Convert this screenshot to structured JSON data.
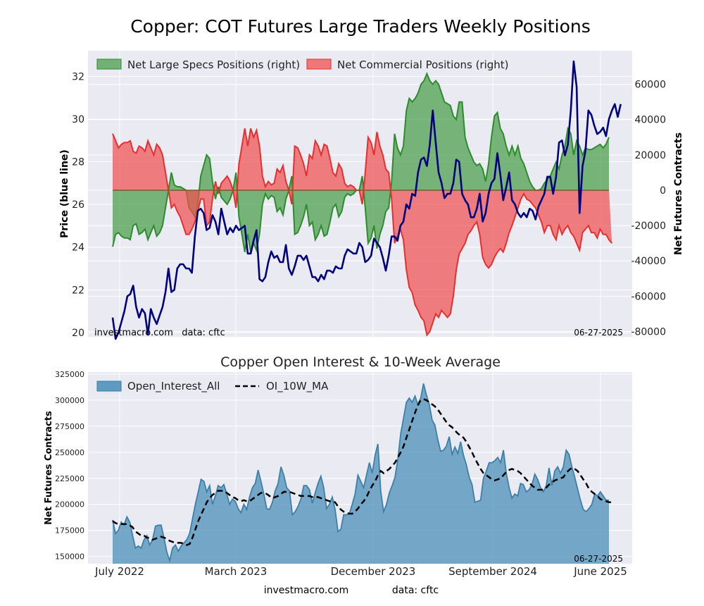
{
  "page": {
    "title": "Copper: COT Futures Large Traders Weekly Positions",
    "footer_left": "investmacro.com",
    "footer_right": "data: cftc"
  },
  "colors": {
    "price_line": "#00007f",
    "specs_fill": "#4a9e4a",
    "specs_line": "#2e8b2e",
    "comm_fill": "#f05050",
    "comm_line": "#e53030",
    "oi_fill": "#5f9bbf",
    "oi_line": "#3d7fa6",
    "ma_line": "#000000",
    "panel_bg": "#eaeaf2"
  },
  "chart_data": [
    {
      "type": "area",
      "title": "",
      "ylabel_left": "Price (blue line)",
      "ylabel_right": "Net Futures Contracts",
      "ylim_left": [
        19.8,
        33.2
      ],
      "ylim_right": [
        -83000,
        79000
      ],
      "yticks_left": [
        "20",
        "22",
        "24",
        "26",
        "28",
        "30",
        "32"
      ],
      "yticks_right": [
        "-80000",
        "-60000",
        "-40000",
        "-20000",
        "0",
        "20000",
        "40000",
        "60000"
      ],
      "grid": true,
      "legend_position": "top-left",
      "watermark": "investmacro.com   data: cftc",
      "date_label": "06-27-2025",
      "x_start": "2022-06-28",
      "x_end": "2025-06-24",
      "series": [
        {
          "name": "Net Large Specs Positions (right)",
          "values": [
            -32000,
            -25000,
            -24000,
            -26000,
            -27000,
            -27000,
            -28000,
            -20000,
            -19000,
            -25000,
            -24000,
            -22000,
            -28000,
            -24000,
            -20000,
            -26000,
            -24000,
            -20000,
            -10000,
            0,
            10000,
            3000,
            2000,
            2000,
            1000,
            0,
            -10000,
            -12000,
            -15000,
            -8000,
            8000,
            14000,
            20000,
            18000,
            5000,
            -5000,
            2000,
            -4000,
            -6000,
            -8000,
            -5000,
            0,
            10000,
            -15000,
            -25000,
            -35000,
            -25000,
            -35000,
            -30000,
            -34000,
            -25000,
            -8000,
            -2000,
            -5000,
            -3000,
            -4000,
            -12000,
            -10000,
            -14000,
            -5000,
            0,
            8000,
            -25000,
            -24000,
            -20000,
            -15000,
            -8000,
            -20000,
            -18000,
            -28000,
            -25000,
            -20000,
            -26000,
            -25000,
            -18000,
            -10000,
            -8000,
            -15000,
            -12000,
            -4000,
            -2000,
            -3000,
            -2000,
            0,
            0,
            8000,
            -10000,
            -30000,
            -27000,
            -20000,
            -33000,
            -25000,
            -20000,
            -12000,
            -10000,
            5000,
            32000,
            24000,
            20000,
            25000,
            45000,
            52000,
            50000,
            52000,
            55000,
            60000,
            62000,
            66000,
            62000,
            60000,
            62000,
            60000,
            55000,
            50000,
            49000,
            48000,
            42000,
            40000,
            50000,
            50000,
            30000,
            24000,
            20000,
            16000,
            14000,
            15000,
            12000,
            5000,
            15000,
            30000,
            42000,
            44000,
            35000,
            32000,
            25000,
            20000,
            25000,
            20000,
            25000,
            18000,
            15000,
            10000,
            5000,
            2000,
            0,
            0,
            1000,
            4000,
            6000,
            8000,
            12000,
            16000,
            12000,
            20000,
            25000,
            35000,
            32000,
            20000,
            28000,
            25000,
            20000,
            24000,
            23000,
            23000,
            24000,
            25000,
            26000,
            24000,
            26000,
            30000
          ]
        },
        {
          "name": "Net Commercial Positions (right)",
          "values": [
            32000,
            28000,
            24000,
            26000,
            27000,
            27000,
            28000,
            22000,
            21000,
            25000,
            24000,
            22000,
            28000,
            24000,
            20000,
            26000,
            24000,
            20000,
            10000,
            0,
            -10000,
            -8000,
            -12000,
            -15000,
            -20000,
            -25000,
            -25000,
            -22000,
            -18000,
            -12000,
            -5000,
            -5000,
            -20000,
            -18000,
            -5000,
            5000,
            -2000,
            4000,
            6000,
            8000,
            5000,
            0,
            -10000,
            15000,
            25000,
            35000,
            25000,
            35000,
            30000,
            34000,
            25000,
            8000,
            2000,
            5000,
            3000,
            4000,
            12000,
            10000,
            14000,
            5000,
            0,
            -8000,
            25000,
            24000,
            20000,
            15000,
            8000,
            20000,
            18000,
            28000,
            25000,
            20000,
            26000,
            25000,
            18000,
            10000,
            8000,
            15000,
            12000,
            4000,
            2000,
            3000,
            2000,
            0,
            0,
            -8000,
            10000,
            30000,
            27000,
            20000,
            33000,
            25000,
            20000,
            12000,
            10000,
            -5000,
            -30000,
            -26000,
            -22000,
            -28000,
            -45000,
            -55000,
            -58000,
            -65000,
            -68000,
            -72000,
            -74000,
            -82000,
            -80000,
            -75000,
            -70000,
            -72000,
            -68000,
            -70000,
            -72000,
            -70000,
            -60000,
            -45000,
            -36000,
            -33000,
            -30000,
            -25000,
            -23000,
            -20000,
            -18000,
            -25000,
            -38000,
            -42000,
            -44000,
            -42000,
            -38000,
            -35000,
            -33000,
            -35000,
            -30000,
            -24000,
            -20000,
            -15000,
            -10000,
            -5000,
            -2000,
            -5000,
            -6000,
            -8000,
            -10000,
            -14000,
            -18000,
            -24000,
            -20000,
            -20000,
            -25000,
            -28000,
            -20000,
            -25000,
            -22000,
            -20000,
            -24000,
            -26000,
            -30000,
            -34000,
            -24000,
            -22000,
            -20000,
            -24000,
            -24000,
            -27000,
            -22000,
            -25000,
            -25000,
            -28000,
            -30000
          ]
        },
        {
          "name": "Price",
          "values": [
            20.7,
            19.7,
            20.0,
            20.5,
            21.0,
            21.7,
            21.8,
            22.2,
            21.2,
            20.7,
            21.1,
            20.9,
            19.9,
            21.1,
            20.7,
            20.4,
            20.8,
            21.2,
            21.9,
            23.0,
            21.9,
            22.0,
            23.0,
            23.2,
            23.2,
            23.0,
            23.0,
            22.8,
            24.5,
            25.7,
            25.8,
            25.6,
            24.8,
            24.9,
            25.5,
            25.2,
            24.6,
            25.8,
            25.2,
            24.6,
            24.9,
            24.7,
            25.0,
            24.8,
            24.9,
            25.0,
            23.7,
            23.7,
            24.3,
            24.8,
            22.5,
            22.4,
            22.6,
            23.3,
            23.8,
            23.5,
            23.6,
            23.3,
            23.3,
            24.1,
            23.0,
            22.7,
            23.1,
            23.6,
            23.6,
            23.4,
            23.6,
            23.1,
            22.6,
            22.6,
            22.4,
            22.7,
            22.5,
            22.9,
            22.9,
            22.8,
            23.1,
            23.0,
            23.0,
            23.6,
            23.9,
            23.8,
            23.7,
            23.7,
            24.2,
            24.0,
            23.3,
            23.4,
            23.6,
            24.4,
            24.2,
            24.0,
            23.5,
            22.9,
            23.6,
            24.5,
            24.5,
            24.3,
            25.0,
            25.2,
            26.0,
            25.8,
            26.5,
            26.4,
            27.5,
            28.1,
            28.2,
            27.8,
            28.8,
            30.4,
            28.9,
            27.5,
            27.0,
            26.3,
            26.5,
            26.5,
            27.0,
            28.1,
            28.0,
            26.5,
            26.2,
            26.0,
            25.4,
            25.4,
            25.8,
            26.5,
            25.2,
            25.6,
            26.5,
            27.0,
            27.2,
            28.4,
            27.4,
            26.2,
            26.8,
            27.5,
            26.2,
            26.0,
            25.6,
            25.4,
            25.6,
            25.4,
            25.8,
            25.7,
            25.3,
            25.9,
            26.2,
            26.5,
            27.3,
            27.3,
            26.5,
            27.3,
            28.9,
            29.0,
            28.3,
            28.8,
            30.4,
            32.7,
            31.5,
            25.6,
            27.8,
            28.5,
            30.4,
            30.2,
            29.7,
            29.3,
            29.4,
            29.6,
            29.2,
            30.0,
            30.4,
            30.7,
            30.1,
            30.7
          ]
        }
      ]
    },
    {
      "type": "area",
      "title": "Copper Open Interest & 10-Week Average",
      "xlabel": "",
      "ylabel": "Net Futures Contracts",
      "ylim": [
        143000,
        327000
      ],
      "yticks": [
        "150000",
        "175000",
        "200000",
        "225000",
        "250000",
        "275000",
        "300000",
        "325000"
      ],
      "xticks": [
        "July 2022",
        "March 2023",
        "December 2023",
        "September 2024",
        "June 2025"
      ],
      "grid": true,
      "legend_position": "top-left",
      "date_label": "06-27-2025",
      "series": [
        {
          "name": "Open_Interest_All",
          "values": [
            185000,
            172000,
            175000,
            183000,
            180000,
            188000,
            183000,
            170000,
            158000,
            160000,
            158000,
            166000,
            170000,
            161000,
            166000,
            179000,
            180000,
            180000,
            168000,
            154000,
            146000,
            158000,
            161000,
            155000,
            160000,
            163000,
            166000,
            172000,
            186000,
            200000,
            212000,
            224000,
            222000,
            212000,
            218000,
            200000,
            208000,
            218000,
            216000,
            219000,
            210000,
            200000,
            205000,
            203000,
            196000,
            192000,
            200000,
            195000,
            207000,
            216000,
            220000,
            233000,
            222000,
            210000,
            196000,
            195000,
            202000,
            213000,
            220000,
            236000,
            228000,
            216000,
            213000,
            190000,
            193000,
            198000,
            205000,
            218000,
            218000,
            214000,
            201000,
            211000,
            220000,
            227000,
            216000,
            196000,
            200000,
            207000,
            195000,
            174000,
            176000,
            190000,
            190000,
            191000,
            200000,
            210000,
            228000,
            222000,
            216000,
            228000,
            240000,
            230000,
            247000,
            258000,
            212000,
            193000,
            200000,
            211000,
            218000,
            226000,
            244000,
            268000,
            283000,
            298000,
            302000,
            298000,
            304000,
            296000,
            302000,
            316000,
            305000,
            296000,
            281000,
            276000,
            262000,
            251000,
            252000,
            256000,
            265000,
            248000,
            255000,
            249000,
            260000,
            247000,
            238000,
            226000,
            219000,
            202000,
            203000,
            204000,
            225000,
            232000,
            240000,
            240000,
            242000,
            245000,
            240000,
            252000,
            230000,
            216000,
            206000,
            210000,
            208000,
            220000,
            219000,
            212000,
            214000,
            219000,
            229000,
            224000,
            216000,
            212000,
            218000,
            235000,
            218000,
            232000,
            236000,
            230000,
            236000,
            252000,
            248000,
            236000,
            226000,
            215000,
            204000,
            195000,
            193000,
            196000,
            200000,
            210000,
            208000,
            212000,
            208000,
            204000,
            204000
          ]
        },
        {
          "name": "OI_10W_MA",
          "values": [
            184000,
            182000,
            181000,
            181000,
            181000,
            181000,
            180000,
            178000,
            174000,
            172000,
            170000,
            170000,
            168000,
            168000,
            166000,
            167000,
            168000,
            169000,
            168000,
            167000,
            165000,
            164000,
            163000,
            163000,
            163000,
            162000,
            161000,
            162000,
            168000,
            176000,
            184000,
            190000,
            196000,
            202000,
            206000,
            209000,
            211000,
            213000,
            213000,
            213000,
            211000,
            209000,
            207000,
            206000,
            204000,
            203000,
            204000,
            203000,
            203000,
            205000,
            207000,
            209000,
            211000,
            211000,
            210000,
            208000,
            206000,
            207000,
            208000,
            210000,
            212000,
            212000,
            212000,
            211000,
            210000,
            209000,
            208000,
            208000,
            208000,
            208000,
            207000,
            207000,
            207000,
            206000,
            205000,
            204000,
            203000,
            203000,
            202000,
            198000,
            195000,
            193000,
            192000,
            191000,
            191000,
            193000,
            196000,
            200000,
            203000,
            207000,
            213000,
            218000,
            222000,
            228000,
            232000,
            230000,
            232000,
            234000,
            237000,
            240000,
            245000,
            250000,
            256000,
            264000,
            272000,
            280000,
            288000,
            295000,
            300000,
            301000,
            300000,
            298000,
            296000,
            294000,
            291000,
            287000,
            283000,
            279000,
            276000,
            274000,
            271000,
            268000,
            266000,
            264000,
            260000,
            255000,
            250000,
            244000,
            239000,
            234000,
            230000,
            228000,
            226000,
            224000,
            223000,
            224000,
            225000,
            228000,
            231000,
            233000,
            234000,
            233000,
            232000,
            230000,
            227000,
            224000,
            221000,
            218000,
            216000,
            214000,
            214000,
            214000,
            216000,
            219000,
            221000,
            223000,
            224000,
            225000,
            226000,
            230000,
            233000,
            235000,
            234000,
            232000,
            228000,
            224000,
            220000,
            215000,
            212000,
            210000,
            208000,
            205000,
            204000,
            203000,
            202000,
            202000
          ]
        }
      ]
    }
  ]
}
